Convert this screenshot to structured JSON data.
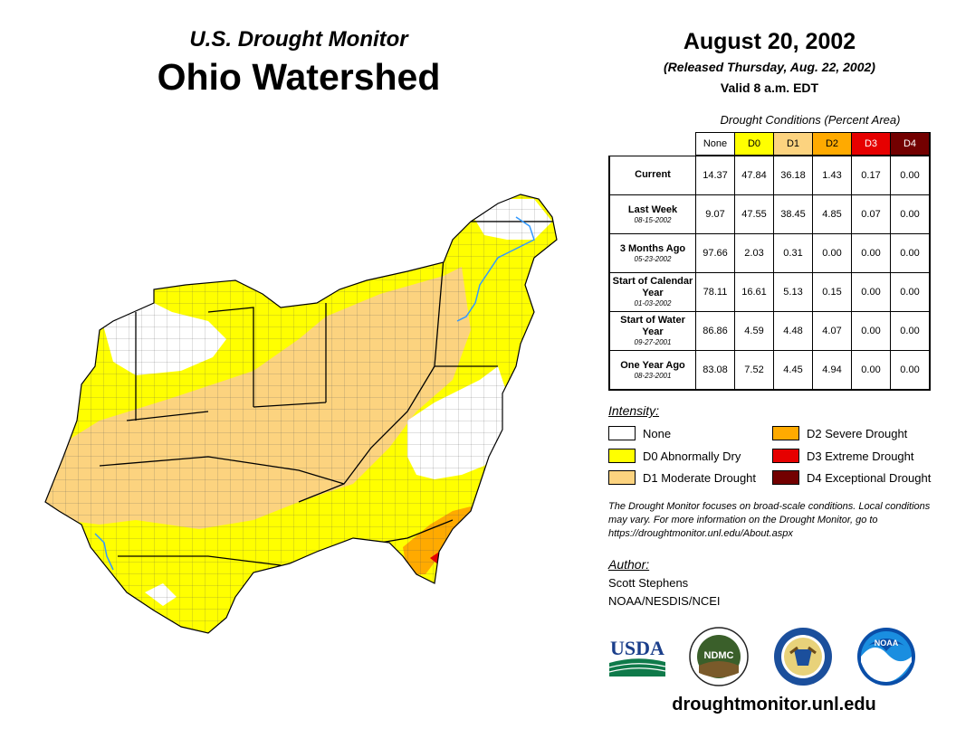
{
  "header": {
    "subtitle": "U.S. Drought Monitor",
    "title": "Ohio Watershed",
    "date": "August 20, 2002",
    "released": "(Released Thursday, Aug. 22, 2002)",
    "valid": "Valid 8 a.m. EDT"
  },
  "table": {
    "caption": "Drought Conditions (Percent Area)",
    "columns": [
      "None",
      "D0",
      "D1",
      "D2",
      "D3",
      "D4"
    ],
    "column_colors": [
      "#ffffff",
      "#ffff00",
      "#fcd37f",
      "#ffaa00",
      "#e60000",
      "#730000"
    ],
    "column_text_colors": [
      "#000000",
      "#000000",
      "#000000",
      "#000000",
      "#ffffff",
      "#ffffff"
    ],
    "rows": [
      {
        "label": "Current",
        "date": "",
        "values": [
          "14.37",
          "47.84",
          "36.18",
          "1.43",
          "0.17",
          "0.00"
        ]
      },
      {
        "label": "Last Week",
        "date": "08-15-2002",
        "values": [
          "9.07",
          "47.55",
          "38.45",
          "4.85",
          "0.07",
          "0.00"
        ]
      },
      {
        "label": "3 Months Ago",
        "date": "05-23-2002",
        "values": [
          "97.66",
          "2.03",
          "0.31",
          "0.00",
          "0.00",
          "0.00"
        ]
      },
      {
        "label": "Start of Calendar Year",
        "date": "01-03-2002",
        "values": [
          "78.11",
          "16.61",
          "5.13",
          "0.15",
          "0.00",
          "0.00"
        ]
      },
      {
        "label": "Start of Water Year",
        "date": "09-27-2001",
        "values": [
          "86.86",
          "4.59",
          "4.48",
          "4.07",
          "0.00",
          "0.00"
        ]
      },
      {
        "label": "One Year Ago",
        "date": "08-23-2001",
        "values": [
          "83.08",
          "7.52",
          "4.45",
          "4.94",
          "0.00",
          "0.00"
        ]
      }
    ]
  },
  "legend": {
    "heading": "Intensity:",
    "items": [
      {
        "label": "None",
        "color": "#ffffff"
      },
      {
        "label": "D0 Abnormally Dry",
        "color": "#ffff00"
      },
      {
        "label": "D1 Moderate Drought",
        "color": "#fcd37f"
      },
      {
        "label": "D2 Severe Drought",
        "color": "#ffaa00"
      },
      {
        "label": "D3 Extreme Drought",
        "color": "#e60000"
      },
      {
        "label": "D4 Exceptional Drought",
        "color": "#730000"
      }
    ]
  },
  "note": "The Drought Monitor focuses on broad-scale conditions. Local conditions may vary. For more information on the Drought Monitor, go to https://droughtmonitor.unl.edu/About.aspx",
  "author": {
    "heading": "Author:",
    "name": "Scott Stephens",
    "org": "NOAA/NESDIS/NCEI"
  },
  "logos": {
    "usda": "USDA",
    "ndmc": "NDMC",
    "noaa": "NOAA"
  },
  "website": "droughtmonitor.unl.edu",
  "map": {
    "region": "Ohio Watershed",
    "colors": {
      "none": "#ffffff",
      "d0": "#ffff00",
      "d1": "#fcd37f",
      "d2": "#ffaa00",
      "d3": "#e60000",
      "river": "#3399ff",
      "county": "#555555",
      "state": "#000000"
    }
  }
}
